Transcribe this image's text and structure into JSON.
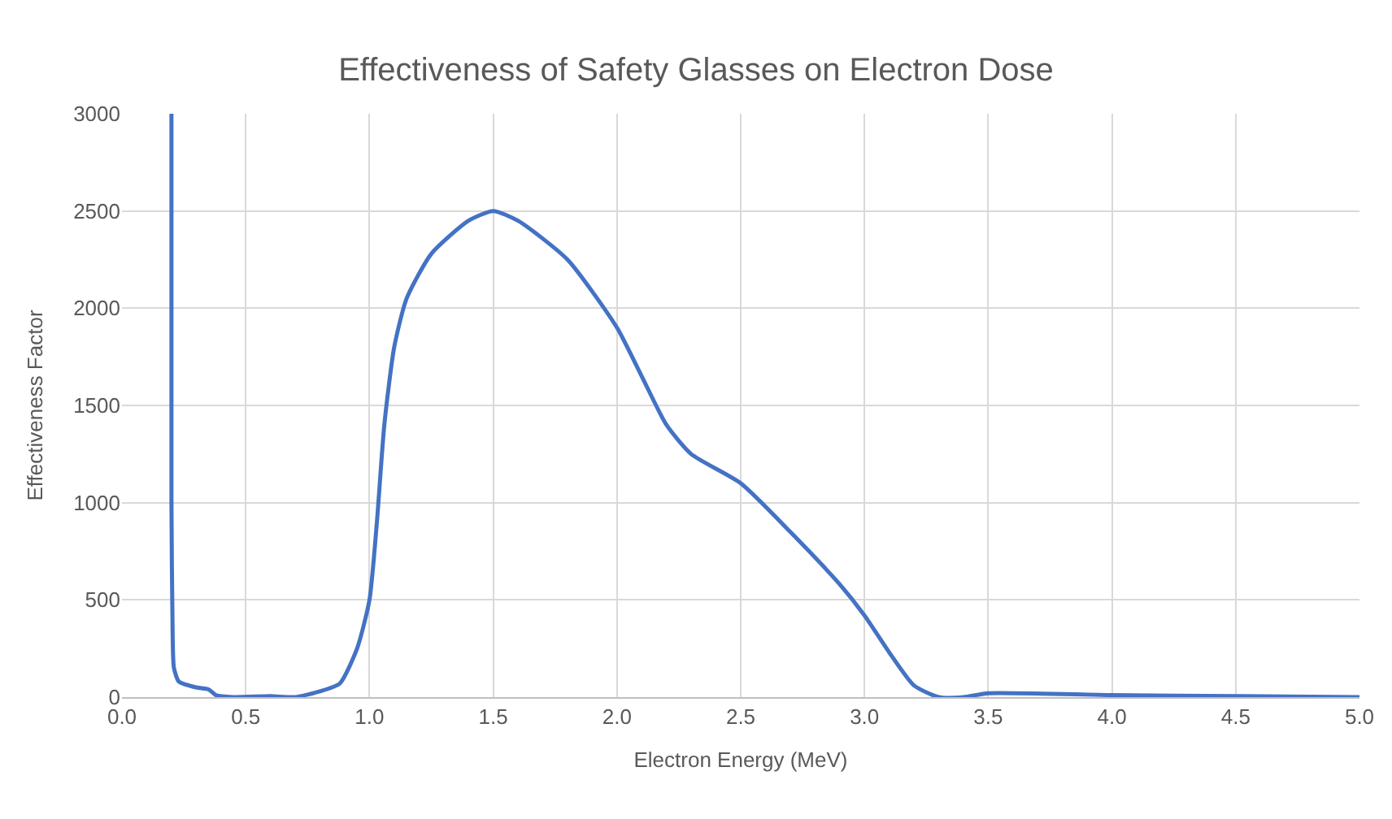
{
  "chart_data": {
    "type": "line",
    "title": "Effectiveness of Safety Glasses on Electron Dose",
    "xlabel": "Electron Energy (MeV)",
    "ylabel": "Effectiveness Factor",
    "series": [
      {
        "color": "#4472c4",
        "x": [
          0.2,
          0.2,
          0.205,
          0.21,
          0.23,
          0.3,
          0.35,
          0.38,
          0.45,
          0.6,
          0.7,
          0.8,
          0.88,
          0.95,
          1.0,
          1.03,
          1.06,
          1.1,
          1.15,
          1.25,
          1.4,
          1.5,
          1.6,
          1.8,
          2.0,
          2.1,
          2.2,
          2.3,
          2.5,
          2.7,
          2.9,
          3.0,
          3.1,
          3.2,
          3.3,
          3.4,
          3.5,
          4.0,
          4.5,
          5.0
        ],
        "values": [
          3000,
          1000,
          300,
          150,
          80,
          50,
          40,
          10,
          0,
          5,
          0,
          30,
          70,
          250,
          500,
          900,
          1400,
          1800,
          2050,
          2280,
          2450,
          2500,
          2450,
          2250,
          1900,
          1650,
          1400,
          1250,
          1100,
          850,
          580,
          420,
          230,
          60,
          0,
          0,
          20,
          10,
          5,
          0
        ]
      }
    ],
    "xlim": [
      0,
      5
    ],
    "xticks": [
      {
        "value": 0,
        "label": "0.0"
      },
      {
        "value": 0.5,
        "label": "0.5"
      },
      {
        "value": 1,
        "label": "1.0"
      },
      {
        "value": 1.5,
        "label": "1.5"
      },
      {
        "value": 2,
        "label": "2.0"
      },
      {
        "value": 2.5,
        "label": "2.5"
      },
      {
        "value": 3,
        "label": "3.0"
      },
      {
        "value": 3.5,
        "label": "3.5"
      },
      {
        "value": 4,
        "label": "4.0"
      },
      {
        "value": 4.5,
        "label": "4.5"
      },
      {
        "value": 5,
        "label": "5.0"
      }
    ],
    "ylim": [
      0,
      3000
    ],
    "yticks": [
      0,
      500,
      1000,
      1500,
      2000,
      2500,
      3000
    ],
    "grid": true,
    "legend": false,
    "marker": "none",
    "line_style": "solid"
  }
}
